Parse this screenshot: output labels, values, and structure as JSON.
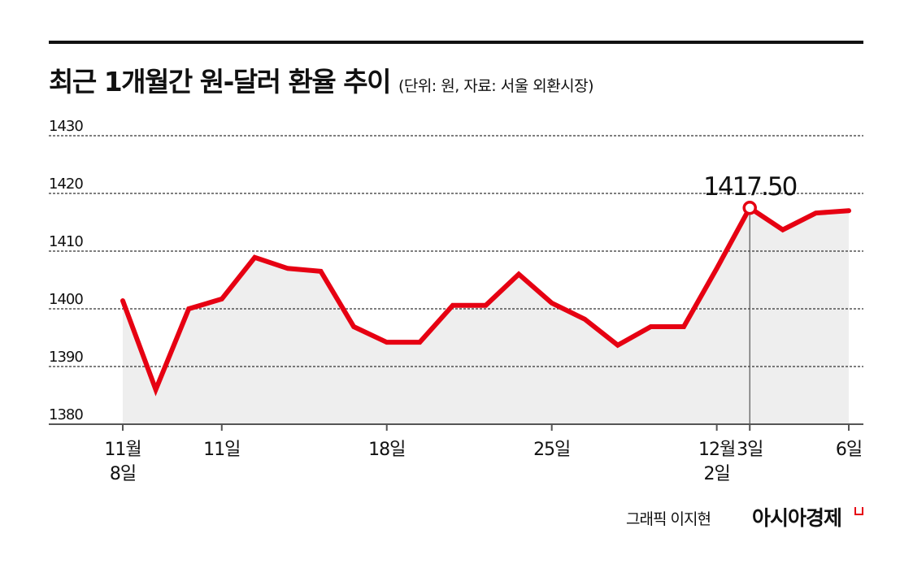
{
  "header": {
    "title": "최근 1개월간 원-달러 환율 추이",
    "subtitle": "(단위: 원, 자료: 서울 외환시장)"
  },
  "footer": {
    "credit": "그래픽 이지현",
    "brand": "아시아경제"
  },
  "colors": {
    "line": "#e60012",
    "area": "#eeeeee",
    "grid": "#333333"
  },
  "chart_data": {
    "type": "area",
    "title": "최근 1개월간 원-달러 환율 추이",
    "ylim": [
      1380,
      1430
    ],
    "yticks": [
      1380,
      1390,
      1400,
      1410,
      1420,
      1430
    ],
    "grid": true,
    "x_tick_labels": [
      {
        "index": 0,
        "label": [
          "11월",
          "8일"
        ]
      },
      {
        "index": 3,
        "label": [
          "11일"
        ]
      },
      {
        "index": 8,
        "label": [
          "18일"
        ]
      },
      {
        "index": 13,
        "label": [
          "25일"
        ]
      },
      {
        "index": 18,
        "label": [
          "12월",
          "2일"
        ]
      },
      {
        "index": 19,
        "label": [
          "3일"
        ]
      },
      {
        "index": 22,
        "label": [
          "6일"
        ]
      }
    ],
    "values": [
      1401.4,
      1386.0,
      1400.0,
      1401.7,
      1408.9,
      1407.0,
      1406.5,
      1396.9,
      1394.2,
      1394.2,
      1400.6,
      1400.6,
      1406.0,
      1401.0,
      1398.2,
      1393.7,
      1396.9,
      1396.9,
      1407.0,
      1417.5,
      1413.7,
      1416.6,
      1417.0
    ],
    "annotation": {
      "index": 19,
      "label": "1417.50"
    }
  }
}
